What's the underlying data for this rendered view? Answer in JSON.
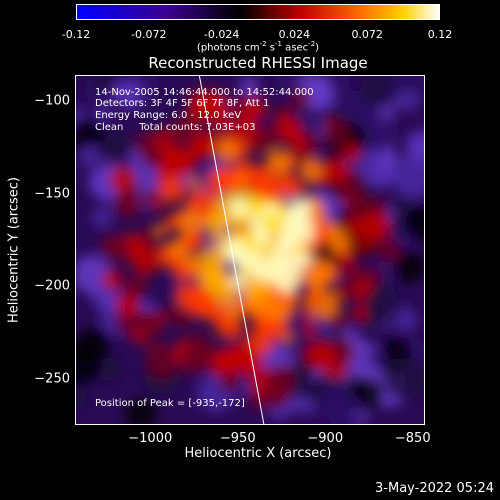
{
  "colorbar": {
    "ticks": [
      "-0.12",
      "-0.072",
      "-0.024",
      "0.024",
      "0.072",
      "0.12"
    ],
    "tick_values": [
      -0.12,
      -0.072,
      -0.024,
      0.024,
      0.072,
      0.12
    ],
    "unit_base": "(photons cm",
    "unit_exp1": "-2",
    "unit_mid": " s",
    "unit_exp2": "-1",
    "unit_mid2": " asec",
    "unit_exp3": "-2",
    "unit_end": ")"
  },
  "title": "Reconstructed RHESSI Image",
  "annotations": {
    "time_range": "14-Nov-2005 14:46:44.000 to 14:52:44.000",
    "detectors": "Detectors: 3F 4F 5F 6F 7F 8F, Att 1",
    "energy": "Energy Range: 6.0 - 12.0 keV",
    "clean": "Clean     Total counts: 7.03E+03",
    "peak": "Position of Peak = [-935,-172]"
  },
  "chart_data": {
    "type": "heatmap",
    "title": "Reconstructed RHESSI Image",
    "xlabel": "Heliocentric X (arcsec)",
    "ylabel": "Heliocentric Y (arcsec)",
    "xlim": [
      -1043,
      -843
    ],
    "ylim": [
      -275,
      -86
    ],
    "x_ticks": [
      -1000,
      -950,
      -900,
      -850
    ],
    "x_tick_labels": [
      "−1000",
      "−950",
      "−900",
      "−850"
    ],
    "y_ticks": [
      -100,
      -150,
      -200,
      -250
    ],
    "y_tick_labels": [
      "−100",
      "−150",
      "−200",
      "−250"
    ],
    "colorbar_range": [
      -0.12,
      0.12
    ],
    "peak_position": [
      -935,
      -172
    ],
    "limb_line": [
      [
        -972,
        -86
      ],
      [
        -935,
        -275
      ]
    ],
    "colormap": [
      "#0000ff",
      "#000000",
      "#ff0000",
      "#ffff00",
      "#ffffff"
    ]
  },
  "footer": {
    "date": "3-May-2022 05:24"
  }
}
